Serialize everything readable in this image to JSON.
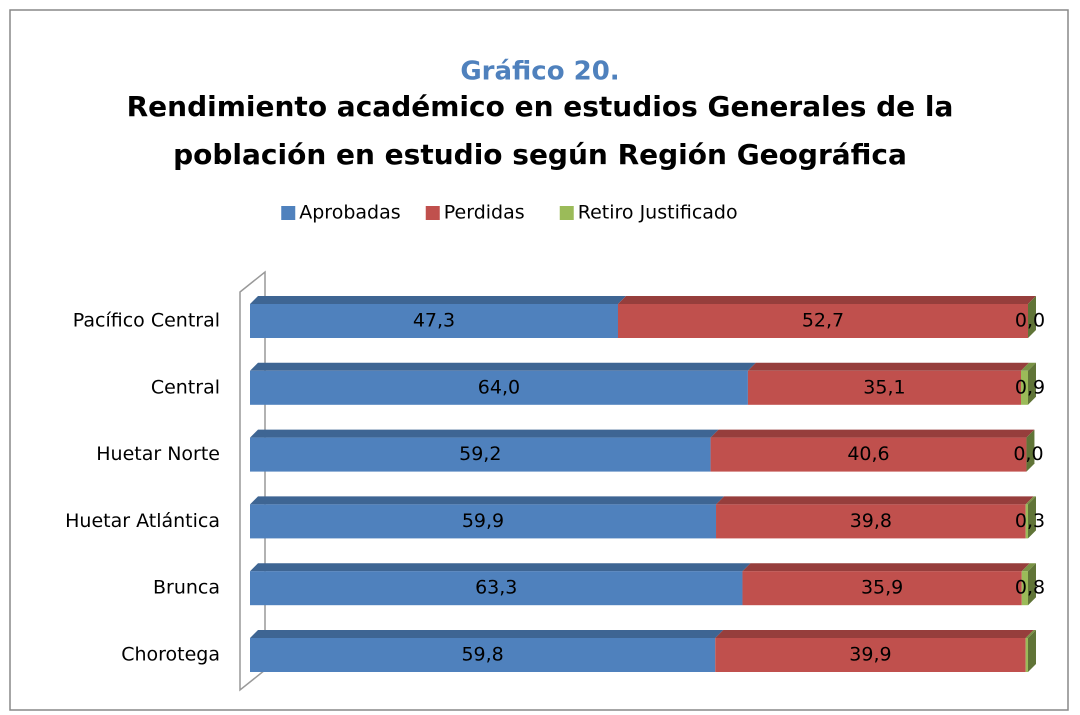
{
  "chart_data": {
    "type": "stacked-bar-horizontal-3d",
    "supertitle": "Gráfico 20.",
    "title_lines": [
      "Rendimiento académico en estudios Generales de la",
      "población en estudio según Región Geográfica"
    ],
    "categories": [
      "Pacífico Central",
      "Central",
      "Huetar Norte",
      "Huetar Atlántica",
      "Brunca",
      "Chorotega"
    ],
    "series": [
      {
        "name": "Aprobadas",
        "color": "#4f81bd",
        "values": [
          47.3,
          64.0,
          59.2,
          59.9,
          63.3,
          59.8
        ],
        "value_labels": [
          "47,3",
          "64,0",
          "59,2",
          "59,9",
          "63,3",
          "59,8"
        ]
      },
      {
        "name": "Perdidas",
        "color": "#c0504d",
        "values": [
          52.7,
          35.1,
          40.6,
          39.8,
          35.9,
          39.9
        ],
        "value_labels": [
          "52,7",
          "35,1",
          "40,6",
          "39,8",
          "35,9",
          "39,9"
        ]
      },
      {
        "name": "Retiro Justificado",
        "color": "#9bbb59",
        "values": [
          0.0,
          0.9,
          0.0,
          0.3,
          0.8,
          0.3
        ],
        "value_labels": [
          "0,0",
          "0,9",
          "0,0",
          "0,3",
          "0,8",
          null
        ]
      }
    ],
    "legend": "top"
  }
}
